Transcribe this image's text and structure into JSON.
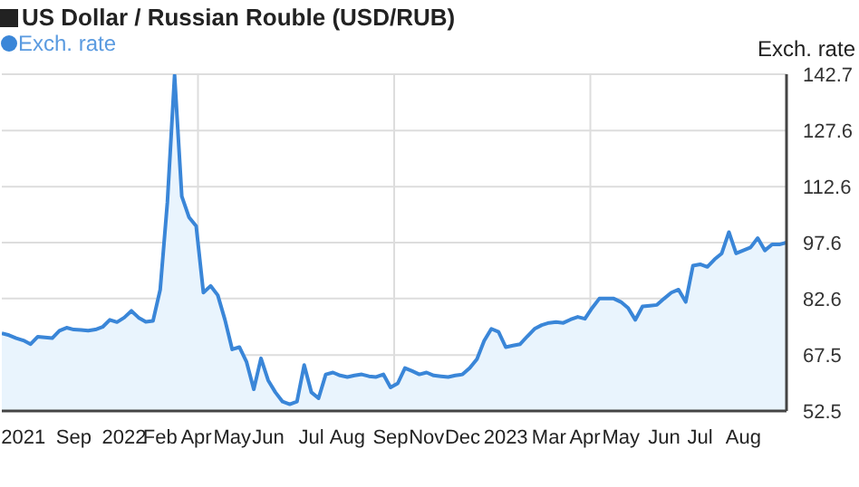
{
  "chart_data": {
    "type": "area",
    "title": "US Dollar / Russian Rouble (USD/RUB)",
    "ylabel": "Exch. rate",
    "categories": [
      null,
      null,
      null,
      "2021",
      null,
      null,
      null,
      null,
      null,
      null,
      "Sep",
      null,
      null,
      null,
      null,
      null,
      null,
      "2022",
      null,
      null,
      null,
      null,
      "Feb",
      null,
      null,
      null,
      null,
      "Apr",
      null,
      null,
      null,
      null,
      "May",
      null,
      null,
      null,
      null,
      "Jun",
      null,
      null,
      null,
      null,
      null,
      "Jul",
      null,
      null,
      null,
      null,
      "Aug",
      null,
      null,
      null,
      null,
      null,
      "Sep",
      null,
      null,
      null,
      null,
      "Nov",
      null,
      null,
      null,
      null,
      "Dec",
      null,
      null,
      null,
      null,
      null,
      "2023",
      null,
      null,
      null,
      null,
      null,
      "Mar",
      null,
      null,
      null,
      null,
      "Apr",
      null,
      null,
      null,
      null,
      "May",
      null,
      null,
      null,
      null,
      null,
      "Jun",
      null,
      null,
      null,
      null,
      "Jul",
      null,
      null,
      null,
      null,
      null,
      "Aug",
      null,
      null,
      null,
      null,
      null,
      null
    ],
    "series": [
      {
        "name": "Exch. rate",
        "color": "#3a86d8",
        "values": [
          73.3,
          72.8,
          72.0,
          71.4,
          70.4,
          72.4,
          72.2,
          72.0,
          74.0,
          74.8,
          74.3,
          74.2,
          74.0,
          74.3,
          75.0,
          76.9,
          76.3,
          77.5,
          79.3,
          77.5,
          76.4,
          76.6,
          85.0,
          108.4,
          142.4,
          110.0,
          104.4,
          102.0,
          84.2,
          86.0,
          83.5,
          76.9,
          69.0,
          69.6,
          65.6,
          58.3,
          66.6,
          60.7,
          57.5,
          55.0,
          54.3,
          55.0,
          64.8,
          57.5,
          55.9,
          62.3,
          62.8,
          62.0,
          61.6,
          62.0,
          62.3,
          61.8,
          61.6,
          62.3,
          58.8,
          59.9,
          64.0,
          63.2,
          62.3,
          62.8,
          62.0,
          61.8,
          61.6,
          62.0,
          62.3,
          64.0,
          66.4,
          71.3,
          74.5,
          73.7,
          69.6,
          70.0,
          70.4,
          72.5,
          74.5,
          75.5,
          76.1,
          76.3,
          76.1,
          77.0,
          77.7,
          77.2,
          80.1,
          82.6,
          82.6,
          82.6,
          81.7,
          80.1,
          76.9,
          80.5,
          80.7,
          80.9,
          82.6,
          84.2,
          85.0,
          81.7,
          91.4,
          91.8,
          91.1,
          93.1,
          94.7,
          100.4,
          94.7,
          95.5,
          96.3,
          98.8,
          95.5,
          97.1,
          97.1,
          97.6
        ]
      }
    ],
    "ylim": [
      52.5,
      142.7
    ],
    "yticks": [
      52.5,
      67.5,
      82.6,
      97.6,
      112.6,
      127.6,
      142.7
    ],
    "grid": true,
    "legend": "top left"
  }
}
